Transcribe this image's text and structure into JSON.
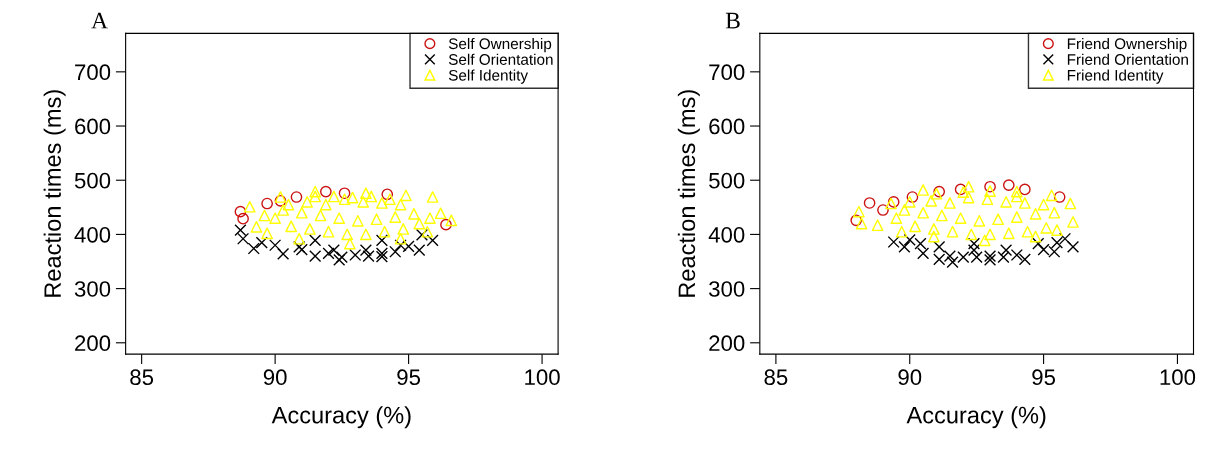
{
  "chart_data": [
    {
      "type": "scatter",
      "title": "A",
      "xlabel": "Accuracy (%)",
      "ylabel": "Reaction times (ms)",
      "xlim": [
        84.4,
        100.6
      ],
      "ylim": [
        179,
        771
      ],
      "xticks": [
        85,
        90,
        95,
        100
      ],
      "yticks": [
        200,
        300,
        400,
        500,
        600,
        700
      ],
      "grid": false,
      "legend": "top right",
      "series": [
        {
          "name": "Self Ownership",
          "color": "#cc1111",
          "marker": "circle",
          "x": [
            88.7,
            88.8,
            89.7,
            90.2,
            90.8,
            91.9,
            92.6,
            94.2,
            96.4
          ],
          "values": [
            442,
            429,
            457,
            462,
            469,
            479,
            476,
            474,
            418
          ]
        },
        {
          "name": "Self Orientation",
          "color": "#000000",
          "marker": "cross",
          "x": [
            88.7,
            88.8,
            89.2,
            90.3,
            92.4,
            94.0,
            95.4,
            95.9,
            95.5,
            90.9,
            92.2,
            93.4,
            94.7,
            91.5,
            94.0,
            89.5,
            90.0,
            91.0,
            92.0,
            93.0,
            94.0,
            95.0,
            91.5,
            92.5,
            93.5,
            94.5
          ],
          "values": [
            408,
            392,
            374,
            364,
            353,
            359,
            371,
            389,
            399,
            377,
            371,
            371,
            380,
            389,
            389,
            385,
            380,
            372,
            365,
            362,
            365,
            378,
            360,
            358,
            360,
            368
          ]
        },
        {
          "name": "Self Identity",
          "color": "#ffff00",
          "marker": "triangle",
          "x": [
            89.05,
            89.3,
            89.7,
            90.9,
            92.8,
            94.7,
            95.7,
            96.2,
            96.6,
            95.9,
            94.9,
            93.4,
            91.5,
            90.2,
            90.0,
            90.6,
            91.3,
            92.0,
            92.7,
            93.4,
            94.1,
            94.8,
            95.4,
            90.3,
            91.0,
            91.7,
            92.4,
            93.1,
            93.8,
            94.5,
            95.2,
            90.5,
            91.2,
            91.9,
            92.6,
            93.3,
            94.0,
            94.7,
            89.6,
            95.8,
            91.5,
            92.2,
            92.9,
            93.6,
            94.3
          ],
          "values": [
            451,
            414,
            402,
            392,
            383,
            392,
            405,
            439,
            426,
            469,
            472,
            476,
            479,
            469,
            430,
            415,
            410,
            405,
            400,
            400,
            405,
            410,
            420,
            445,
            440,
            435,
            430,
            425,
            428,
            432,
            438,
            455,
            460,
            455,
            465,
            460,
            458,
            455,
            435,
            430,
            470,
            470,
            468,
            470,
            465
          ]
        }
      ]
    },
    {
      "type": "scatter",
      "title": "B",
      "xlabel": "Accuracy (%)",
      "ylabel": "Reaction times (ms)",
      "xlim": [
        84.4,
        100.6
      ],
      "ylim": [
        179,
        771
      ],
      "xticks": [
        85,
        90,
        95,
        100
      ],
      "yticks": [
        200,
        300,
        400,
        500,
        600,
        700
      ],
      "grid": false,
      "legend": "top right",
      "series": [
        {
          "name": "Friend Ownership",
          "color": "#cc1111",
          "marker": "circle",
          "x": [
            88.0,
            88.5,
            89.0,
            89.4,
            90.1,
            91.1,
            91.9,
            93.0,
            93.7,
            94.3,
            95.6
          ],
          "values": [
            426,
            458,
            445,
            460,
            469,
            479,
            483,
            488,
            491,
            483,
            469
          ]
        },
        {
          "name": "Friend Orientation",
          "color": "#000000",
          "marker": "cross",
          "x": [
            89.4,
            89.8,
            91.1,
            91.6,
            93.0,
            94.3,
            95.4,
            96.1,
            95.8,
            91.1,
            92.4,
            93.6,
            94.8,
            90.4,
            92.4,
            90.5,
            91.5,
            92.0,
            92.5,
            93.0,
            93.5,
            94.0,
            95.0,
            95.5,
            90.0
          ],
          "values": [
            386,
            377,
            354,
            349,
            353,
            354,
            368,
            377,
            392,
            377,
            371,
            371,
            383,
            383,
            383,
            365,
            360,
            358,
            358,
            360,
            358,
            362,
            372,
            385,
            390
          ]
        },
        {
          "name": "Friend Identity",
          "color": "#ffff00",
          "marker": "triangle",
          "x": [
            88.1,
            88.2,
            88.8,
            89.7,
            90.9,
            92.8,
            94.7,
            95.5,
            96.0,
            96.1,
            95.3,
            94.0,
            92.2,
            90.5,
            89.3,
            89.5,
            90.2,
            90.9,
            91.6,
            92.3,
            93.0,
            93.7,
            94.4,
            95.1,
            89.8,
            90.5,
            91.2,
            91.9,
            92.6,
            93.3,
            94.0,
            94.7,
            95.4,
            90.0,
            90.8,
            91.5,
            92.2,
            92.9,
            93.6,
            94.3,
            95.0,
            91.0,
            92.0,
            93.0,
            94.0
          ],
          "values": [
            442,
            420,
            417,
            405,
            396,
            389,
            396,
            408,
            457,
            423,
            472,
            479,
            488,
            482,
            457,
            430,
            415,
            410,
            405,
            400,
            400,
            402,
            405,
            412,
            445,
            440,
            435,
            430,
            425,
            428,
            432,
            438,
            440,
            460,
            462,
            458,
            468,
            465,
            460,
            458,
            455,
            475,
            478,
            480,
            470
          ]
        }
      ]
    }
  ]
}
